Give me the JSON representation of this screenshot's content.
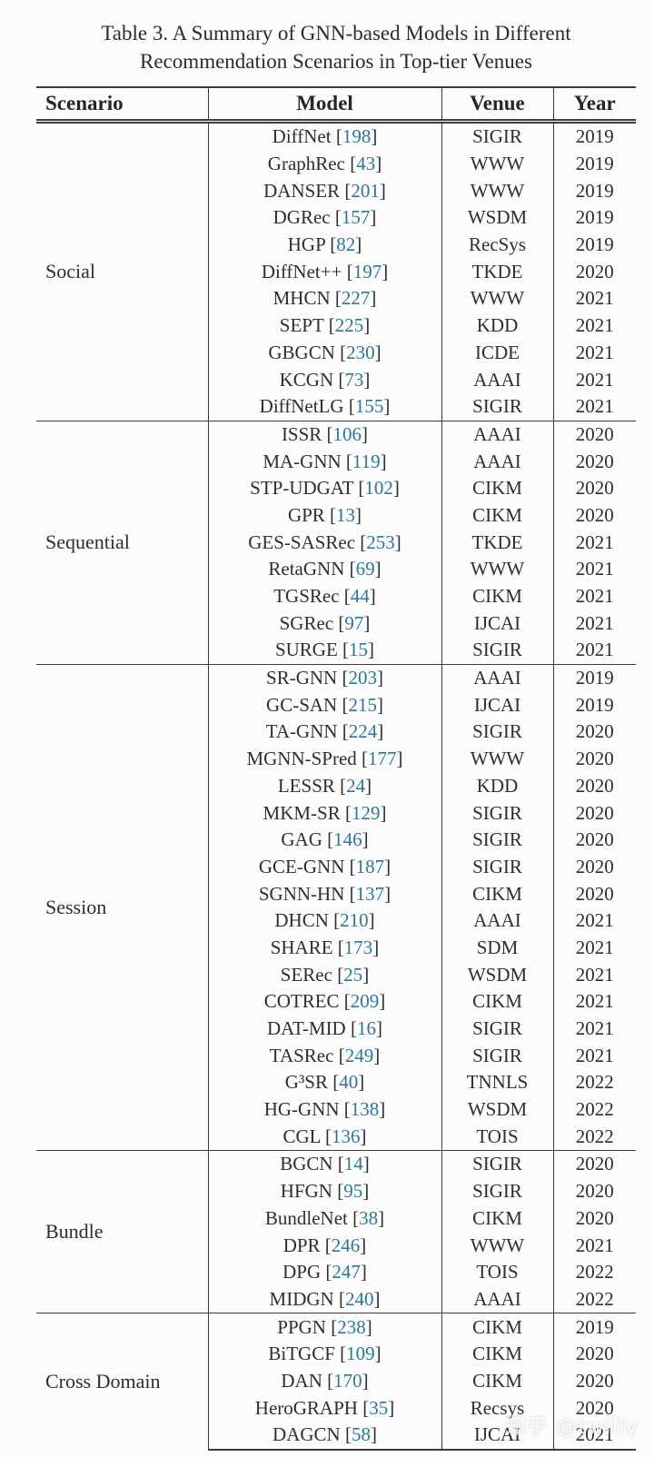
{
  "title": {
    "line1": "Table 3.  A Summary of GNN-based Models in Different",
    "line2": "Recommendation Scenarios in Top-tier Venues"
  },
  "header": {
    "scenario": "Scenario",
    "model": "Model",
    "venue": "Venue",
    "year": "Year"
  },
  "groups": [
    {
      "scenario": "Social",
      "rows": [
        {
          "model": "DiffNet",
          "ref": "198",
          "venue": "SIGIR",
          "year": "2019"
        },
        {
          "model": "GraphRec",
          "ref": "43",
          "venue": "WWW",
          "year": "2019"
        },
        {
          "model": "DANSER",
          "ref": "201",
          "venue": "WWW",
          "year": "2019"
        },
        {
          "model": "DGRec",
          "ref": "157",
          "venue": "WSDM",
          "year": "2019"
        },
        {
          "model": "HGP",
          "ref": "82",
          "venue": "RecSys",
          "year": "2019"
        },
        {
          "model": "DiffNet++",
          "ref": "197",
          "venue": "TKDE",
          "year": "2020"
        },
        {
          "model": "MHCN",
          "ref": "227",
          "venue": "WWW",
          "year": "2021"
        },
        {
          "model": "SEPT",
          "ref": "225",
          "venue": "KDD",
          "year": "2021"
        },
        {
          "model": "GBGCN",
          "ref": "230",
          "venue": "ICDE",
          "year": "2021"
        },
        {
          "model": "KCGN",
          "ref": "73",
          "venue": "AAAI",
          "year": "2021"
        },
        {
          "model": "DiffNetLG",
          "ref": "155",
          "venue": "SIGIR",
          "year": "2021"
        }
      ]
    },
    {
      "scenario": "Sequential",
      "rows": [
        {
          "model": "ISSR",
          "ref": "106",
          "venue": "AAAI",
          "year": "2020"
        },
        {
          "model": "MA-GNN",
          "ref": "119",
          "venue": "AAAI",
          "year": "2020"
        },
        {
          "model": "STP-UDGAT",
          "ref": "102",
          "venue": "CIKM",
          "year": "2020"
        },
        {
          "model": "GPR",
          "ref": "13",
          "venue": "CIKM",
          "year": "2020"
        },
        {
          "model": "GES-SASRec",
          "ref": "253",
          "venue": "TKDE",
          "year": "2021"
        },
        {
          "model": "RetaGNN",
          "ref": "69",
          "venue": "WWW",
          "year": "2021"
        },
        {
          "model": "TGSRec",
          "ref": "44",
          "venue": "CIKM",
          "year": "2021"
        },
        {
          "model": "SGRec",
          "ref": "97",
          "venue": "IJCAI",
          "year": "2021"
        },
        {
          "model": "SURGE",
          "ref": "15",
          "venue": "SIGIR",
          "year": "2021"
        }
      ]
    },
    {
      "scenario": "Session",
      "rows": [
        {
          "model": "SR-GNN",
          "ref": "203",
          "venue": "AAAI",
          "year": "2019"
        },
        {
          "model": "GC-SAN",
          "ref": "215",
          "venue": "IJCAI",
          "year": "2019"
        },
        {
          "model": "TA-GNN",
          "ref": "224",
          "venue": "SIGIR",
          "year": "2020"
        },
        {
          "model": "MGNN-SPred",
          "ref": "177",
          "venue": "WWW",
          "year": "2020"
        },
        {
          "model": "LESSR",
          "ref": "24",
          "venue": "KDD",
          "year": "2020"
        },
        {
          "model": "MKM-SR",
          "ref": "129",
          "venue": "SIGIR",
          "year": "2020"
        },
        {
          "model": "GAG",
          "ref": "146",
          "venue": "SIGIR",
          "year": "2020"
        },
        {
          "model": "GCE-GNN",
          "ref": "187",
          "venue": "SIGIR",
          "year": "2020"
        },
        {
          "model": "SGNN-HN",
          "ref": "137",
          "venue": "CIKM",
          "year": "2020"
        },
        {
          "model": "DHCN",
          "ref": "210",
          "venue": "AAAI",
          "year": "2021"
        },
        {
          "model": "SHARE",
          "ref": "173",
          "venue": "SDM",
          "year": "2021"
        },
        {
          "model": "SERec",
          "ref": "25",
          "venue": "WSDM",
          "year": "2021"
        },
        {
          "model": "COTREC",
          "ref": "209",
          "venue": "CIKM",
          "year": "2021"
        },
        {
          "model": "DAT-MID",
          "ref": "16",
          "venue": "SIGIR",
          "year": "2021"
        },
        {
          "model": "TASRec",
          "ref": "249",
          "venue": "SIGIR",
          "year": "2021"
        },
        {
          "model": "G³SR",
          "ref": "40",
          "venue": "TNNLS",
          "year": "2022"
        },
        {
          "model": "HG-GNN",
          "ref": "138",
          "venue": "WSDM",
          "year": "2022"
        },
        {
          "model": "CGL",
          "ref": "136",
          "venue": "TOIS",
          "year": "2022"
        }
      ]
    },
    {
      "scenario": "Bundle",
      "rows": [
        {
          "model": "BGCN",
          "ref": "14",
          "venue": "SIGIR",
          "year": "2020"
        },
        {
          "model": "HFGN",
          "ref": "95",
          "venue": "SIGIR",
          "year": "2020"
        },
        {
          "model": "BundleNet",
          "ref": "38",
          "venue": "CIKM",
          "year": "2020"
        },
        {
          "model": "DPR",
          "ref": "246",
          "venue": "WWW",
          "year": "2021"
        },
        {
          "model": "DPG",
          "ref": "247",
          "venue": "TOIS",
          "year": "2022"
        },
        {
          "model": "MIDGN",
          "ref": "240",
          "venue": "AAAI",
          "year": "2022"
        }
      ]
    },
    {
      "scenario": "Cross Domain",
      "rows": [
        {
          "model": "PPGN",
          "ref": "238",
          "venue": "CIKM",
          "year": "2019"
        },
        {
          "model": "BiTGCF",
          "ref": "109",
          "venue": "CIKM",
          "year": "2020"
        },
        {
          "model": "DAN",
          "ref": "170",
          "venue": "CIKM",
          "year": "2020"
        },
        {
          "model": "HeroGRAPH",
          "ref": "35",
          "venue": "Recsys",
          "year": "2020"
        },
        {
          "model": "DAGCN",
          "ref": "58",
          "venue": "IJCAI",
          "year": "2021"
        }
      ]
    }
  ],
  "watermark": "知乎 @twilly",
  "colors": {
    "citation_blue": "#2b7895",
    "rule": "#3b3b3b",
    "text": "#2e2e2e",
    "background": "#fcfcfc"
  }
}
